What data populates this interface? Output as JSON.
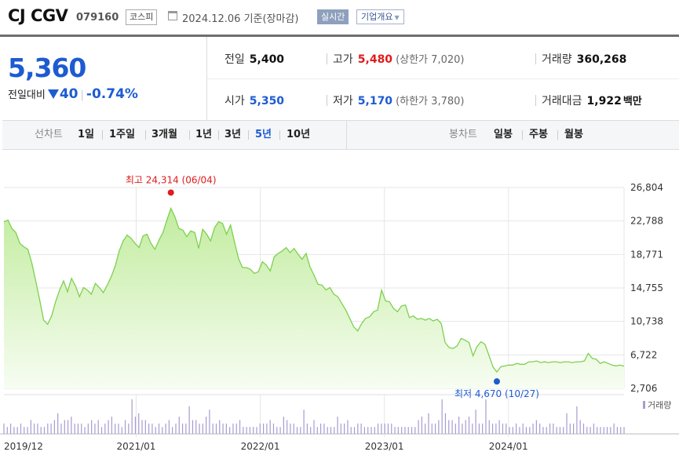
{
  "header": {
    "name": "CJ CGV",
    "code": "079160",
    "market": "코스피",
    "date": "2024.12.06 기준(장마감)",
    "realtime_label": "실시간",
    "corp_label": "기업개요"
  },
  "price": {
    "current": "5,360",
    "change_label": "전일대비",
    "change": "40",
    "change_pct": "-0.74%"
  },
  "stats": {
    "prev_close": {
      "label": "전일",
      "value": "5,400"
    },
    "high": {
      "label": "고가",
      "value": "5,480",
      "limit_label": "상한가",
      "limit": "7,020"
    },
    "volume": {
      "label": "거래량",
      "value": "360,268"
    },
    "open": {
      "label": "시가",
      "value": "5,350"
    },
    "low": {
      "label": "저가",
      "value": "5,170",
      "limit_label": "하한가",
      "limit": "3,780"
    },
    "amount": {
      "label": "거래대금",
      "value": "1,922",
      "unit": "백만"
    }
  },
  "toolbar": {
    "line_chart_label": "선차트",
    "periods": [
      "1일",
      "1주일",
      "3개월",
      "1년",
      "3년",
      "5년",
      "10년"
    ],
    "selected_period": "5년",
    "candle_label": "봉차트",
    "candle_periods": [
      "일봉",
      "주봉",
      "월봉"
    ]
  },
  "chart_data": {
    "type": "area",
    "y_ticks": [
      "26,804",
      "22,788",
      "18,771",
      "14,755",
      "10,738",
      "6,722",
      "2,706"
    ],
    "y_min": 2706,
    "y_max": 26804,
    "x_ticks": [
      "2019/12",
      "2021/01",
      "2022/01",
      "2023/01",
      "2024/01"
    ],
    "high_annotation": {
      "text": "최고 24,314 (06/04)",
      "value": 24314
    },
    "low_annotation": {
      "text": "최저 4,670 (10/27)",
      "value": 4670
    },
    "volume_label": "거래량",
    "colors": {
      "line": "#7ed04f",
      "fill_top": "#c2ec9f",
      "fill_bottom": "#f7fdf2",
      "high": "#e01b1b",
      "low": "#1d5bd1",
      "volume": "#a79bd1"
    },
    "x_date_range": [
      "2019-12-09",
      "2024-12-06"
    ],
    "series": [
      {
        "values": [
          22700,
          22900,
          21900,
          21400,
          20100,
          19700,
          19400,
          17800,
          15600,
          13300,
          10900,
          10400,
          11400,
          13100,
          14500,
          15600,
          14300,
          15900,
          15000,
          13700,
          14800,
          14500,
          14000,
          15300,
          14800,
          14200,
          15100,
          16100,
          17400,
          19200,
          20400,
          21100,
          20700,
          20100,
          19600,
          21000,
          21200,
          20100,
          19400,
          20500,
          21400,
          22900,
          24314,
          23300,
          21900,
          21700,
          20900,
          21600,
          21400,
          19500,
          21800,
          21200,
          20400,
          22000,
          22700,
          22500,
          21200,
          22300,
          20300,
          18300,
          17200,
          17200,
          17000,
          16500,
          16700,
          17900,
          17500,
          16800,
          18500,
          18900,
          19200,
          19600,
          19000,
          19500,
          18800,
          18200,
          18900,
          17300,
          16300,
          15200,
          15100,
          14500,
          14800,
          14000,
          13700,
          12900,
          12100,
          11100,
          10100,
          9600,
          10500,
          11100,
          11300,
          11900,
          12100,
          14500,
          13200,
          13100,
          12300,
          11900,
          12600,
          12700,
          11200,
          11400,
          11000,
          11100,
          10900,
          11100,
          10800,
          11000,
          10500,
          8200,
          7600,
          7500,
          7800,
          8700,
          8500,
          8200,
          6600,
          7700,
          8300,
          8000,
          6700,
          5300,
          4670,
          5300,
          5400,
          5500,
          5500,
          5700,
          5600,
          5600,
          5900,
          5900,
          6000,
          5800,
          5900,
          5800,
          5900,
          5900,
          5800,
          5900,
          5900,
          5800,
          5900,
          5900,
          6000,
          6900,
          6300,
          6200,
          5700,
          5900,
          5700,
          5500,
          5400,
          5500,
          5360
        ]
      }
    ],
    "volume_values": [
      3,
      2,
      3,
      2,
      2,
      3,
      2,
      2,
      4,
      3,
      3,
      2,
      2,
      3,
      3,
      4,
      6,
      3,
      4,
      4,
      5,
      3,
      3,
      3,
      2,
      3,
      4,
      3,
      4,
      2,
      3,
      4,
      5,
      3,
      3,
      2,
      4,
      3,
      10,
      5,
      6,
      4,
      4,
      3,
      3,
      2,
      3,
      2,
      3,
      4,
      2,
      3,
      5,
      3,
      3,
      8,
      4,
      4,
      3,
      3,
      5,
      7,
      3,
      3,
      4,
      3,
      3,
      2,
      3,
      3,
      4,
      2,
      2,
      2,
      2,
      2,
      3,
      3,
      3,
      4,
      3,
      2,
      2,
      5,
      4,
      3,
      3,
      2,
      2,
      7,
      3,
      2,
      4,
      2,
      3,
      3,
      2,
      2,
      2,
      5,
      3,
      3,
      4,
      2,
      2,
      3,
      3,
      2,
      2,
      2,
      2,
      3,
      3,
      3,
      3,
      3,
      2,
      2,
      2,
      2,
      2,
      2,
      2,
      4,
      5,
      3,
      6,
      3,
      3,
      4,
      10,
      6,
      4,
      4,
      3,
      5,
      3,
      4,
      5,
      3,
      7,
      3,
      3,
      10,
      4,
      3,
      3,
      4,
      3,
      3,
      2,
      2,
      3,
      2,
      3,
      2,
      2,
      3,
      4,
      3,
      2,
      2,
      3,
      3,
      2,
      2,
      2,
      6,
      3,
      3,
      8,
      4,
      3,
      2,
      2,
      3,
      2,
      2,
      2,
      2,
      2,
      3,
      2,
      2,
      2
    ]
  }
}
